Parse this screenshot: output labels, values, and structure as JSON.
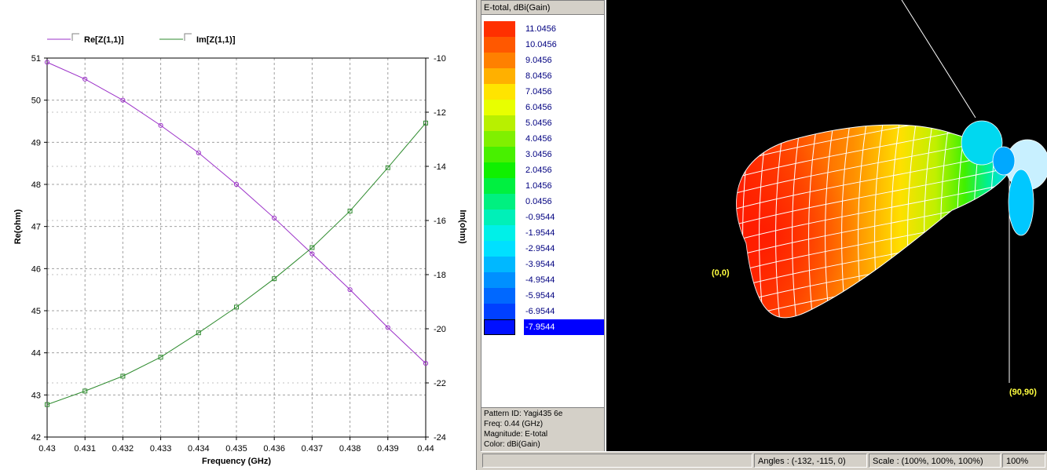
{
  "chart_data": {
    "type": "line",
    "xlabel": "Frequency (GHz)",
    "ylabel": "Re(ohm)",
    "y2label": "Im(ohm)",
    "x": [
      0.43,
      0.431,
      0.432,
      0.433,
      0.434,
      0.435,
      0.436,
      0.437,
      0.438,
      0.439,
      0.44
    ],
    "x_ticks": [
      "0.43",
      "0.431",
      "0.432",
      "0.433",
      "0.434",
      "0.435",
      "0.436",
      "0.437",
      "0.438",
      "0.439",
      "0.44"
    ],
    "ylim": [
      42,
      51
    ],
    "y_ticks": [
      "51",
      "50",
      "49",
      "48",
      "47",
      "46",
      "45",
      "44",
      "43",
      "42"
    ],
    "y2lim": [
      -24,
      -10
    ],
    "y2_ticks": [
      "-10",
      "-12",
      "-14",
      "-16",
      "-18",
      "-20",
      "-22",
      "-24"
    ],
    "grid": true,
    "legend_position": "top-left",
    "series": [
      {
        "name": "Re[Z(1,1)]",
        "axis": "left",
        "color": "#9b30c8",
        "values": [
          50.9,
          50.5,
          50.0,
          49.4,
          48.75,
          48.0,
          47.2,
          46.35,
          45.5,
          44.6,
          43.75
        ]
      },
      {
        "name": "Im[Z(1,1)]",
        "axis": "right",
        "color": "#2e8b2e",
        "values": [
          -22.8,
          -22.3,
          -21.75,
          -21.05,
          -20.15,
          -19.2,
          -18.15,
          -17.0,
          -15.65,
          -14.05,
          -12.4
        ]
      }
    ]
  },
  "legend_panel": {
    "title": "E-total, dBi(Gain)",
    "entries": [
      {
        "label": "11.0456",
        "color": "#ff3000"
      },
      {
        "label": "10.0456",
        "color": "#ff5800"
      },
      {
        "label": "9.0456",
        "color": "#ff8000"
      },
      {
        "label": "8.0456",
        "color": "#ffb000"
      },
      {
        "label": "7.0456",
        "color": "#ffe400"
      },
      {
        "label": "6.0456",
        "color": "#e8ff00"
      },
      {
        "label": "5.0456",
        "color": "#b8f000"
      },
      {
        "label": "4.0456",
        "color": "#80f000"
      },
      {
        "label": "3.0456",
        "color": "#48f000"
      },
      {
        "label": "2.0456",
        "color": "#10f000"
      },
      {
        "label": "1.0456",
        "color": "#00f040"
      },
      {
        "label": "0.0456",
        "color": "#00f080"
      },
      {
        "label": "-0.9544",
        "color": "#00f0b8"
      },
      {
        "label": "-1.9544",
        "color": "#00f0e8"
      },
      {
        "label": "-2.9544",
        "color": "#00e0ff"
      },
      {
        "label": "-3.9544",
        "color": "#00b8ff"
      },
      {
        "label": "-4.9544",
        "color": "#0090ff"
      },
      {
        "label": "-5.9544",
        "color": "#0068ff"
      },
      {
        "label": "-6.9544",
        "color": "#0040ff"
      },
      {
        "label": "-7.9544",
        "color": "#0010ff",
        "selected": true
      }
    ],
    "info": {
      "pattern_id": "Pattern ID: Yagi435 6e",
      "freq": "Freq: 0.44 (GHz)",
      "magnitude": "Magnitude: E-total",
      "color": "Color: dBi(Gain)"
    }
  },
  "view3d": {
    "label_origin": "(0,0)",
    "label_corner": "(90,90)",
    "label_color": "#ffff40"
  },
  "status_bar": {
    "angles": "Angles : (-132, -115, 0)",
    "scale": "Scale : (100%, 100%, 100%)",
    "zoom": "100%"
  }
}
